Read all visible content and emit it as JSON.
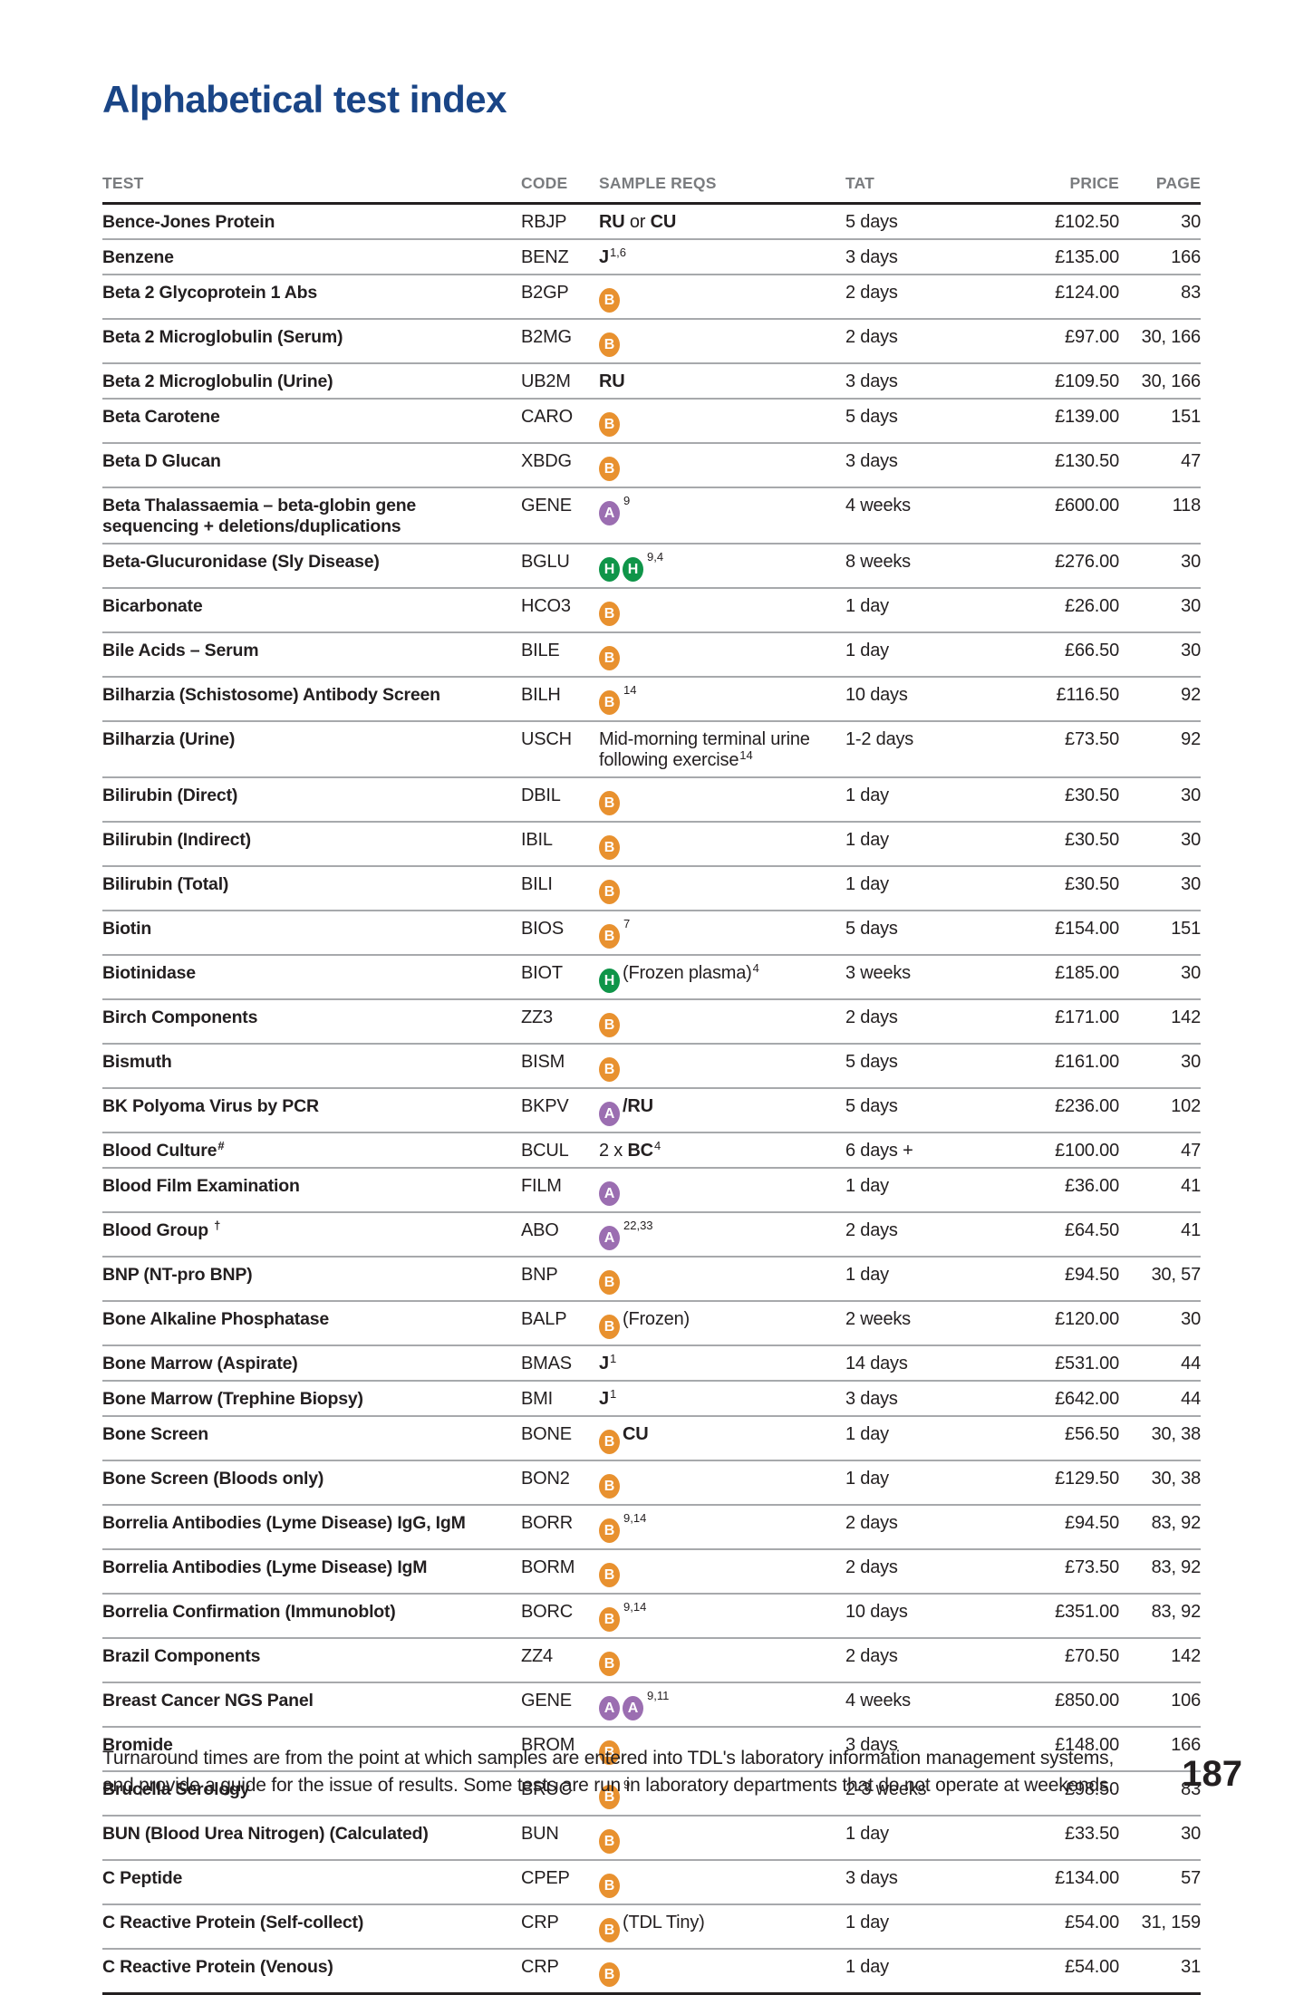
{
  "page": {
    "title": "Alphabetical test index",
    "page_number": "187",
    "footnote": [
      "Turnaround times are from the point at which samples are entered into TDL's laboratory information management systems,",
      "and provide a guide for the issue of results. Some tests are run in laboratory departments that do not operate at weekends."
    ]
  },
  "colors": {
    "title": "#1A4586",
    "badge_b": "#E8912F",
    "badge_a": "#9B6EB1",
    "badge_h": "#0F9549",
    "header_text": "#7A7C7F",
    "body_text": "#231F20",
    "row_line": "#A7A9AC"
  },
  "icons": {
    "badge_b": "blood-sample-icon",
    "badge_a": "edta-sample-icon",
    "badge_h": "heparin-sample-icon"
  },
  "table": {
    "headers": [
      "TEST",
      "CODE",
      "SAMPLE REQS",
      "TAT",
      "PRICE",
      "PAGE"
    ],
    "rows": [
      {
        "test": "Bence-Jones Protein",
        "code": "RBJP",
        "sample": [
          {
            "t": "b",
            "s": "RU"
          },
          {
            "t": "r",
            "s": " or "
          },
          {
            "t": "b",
            "s": "CU"
          }
        ],
        "tat": "5 days",
        "price": "£102.50",
        "pages": "30"
      },
      {
        "test": "Benzene",
        "code": "BENZ",
        "sample": [
          {
            "t": "b",
            "s": "J"
          },
          {
            "t": "sup",
            "s": "1,6"
          }
        ],
        "tat": "3 days",
        "price": "£135.00",
        "pages": "166"
      },
      {
        "test": "Beta 2 Glycoprotein 1 Abs",
        "code": "B2GP",
        "sample": [
          {
            "t": "badge",
            "s": "B"
          }
        ],
        "tat": "2 days",
        "price": "£124.00",
        "pages": "83"
      },
      {
        "test": "Beta 2 Microglobulin (Serum)",
        "code": "B2MG",
        "sample": [
          {
            "t": "badge",
            "s": "B"
          }
        ],
        "tat": "2 days",
        "price": "£97.00",
        "pages": "30, 166"
      },
      {
        "test": "Beta 2 Microglobulin (Urine)",
        "code": "UB2M",
        "sample": [
          {
            "t": "b",
            "s": "RU"
          }
        ],
        "tat": "3 days",
        "price": "£109.50",
        "pages": "30, 166"
      },
      {
        "test": "Beta Carotene",
        "code": "CARO",
        "sample": [
          {
            "t": "badge",
            "s": "B"
          }
        ],
        "tat": "5 days",
        "price": "£139.00",
        "pages": "151"
      },
      {
        "test": "Beta D Glucan",
        "code": "XBDG",
        "sample": [
          {
            "t": "badge",
            "s": "B"
          }
        ],
        "tat": "3 days",
        "price": "£130.50",
        "pages": "47"
      },
      {
        "test": "Beta Thalassaemia – beta-globin gene\nsequencing + deletions/duplications",
        "code": "GENE",
        "sample": [
          {
            "t": "badge",
            "s": "A"
          },
          {
            "t": "sup",
            "s": "9"
          }
        ],
        "tat": "4 weeks",
        "price": "£600.00",
        "pages": "118"
      },
      {
        "test": "Beta-Glucuronidase (Sly Disease)",
        "code": "BGLU",
        "sample": [
          {
            "t": "badge",
            "s": "H"
          },
          {
            "t": "badge",
            "s": "H"
          },
          {
            "t": "sup",
            "s": "9,4"
          }
        ],
        "tat": "8 weeks",
        "price": "£276.00",
        "pages": "30"
      },
      {
        "test": "Bicarbonate",
        "code": "HCO3",
        "sample": [
          {
            "t": "badge",
            "s": "B"
          }
        ],
        "tat": "1 day",
        "price": "£26.00",
        "pages": "30"
      },
      {
        "test": "Bile Acids – Serum",
        "code": "BILE",
        "sample": [
          {
            "t": "badge",
            "s": "B"
          }
        ],
        "tat": "1 day",
        "price": "£66.50",
        "pages": "30"
      },
      {
        "test": "Bilharzia (Schistosome) Antibody Screen",
        "code": "BILH",
        "sample": [
          {
            "t": "badge",
            "s": "B"
          },
          {
            "t": "sup",
            "s": "14"
          }
        ],
        "tat": "10 days",
        "price": "£116.50",
        "pages": "92"
      },
      {
        "test": "Bilharzia (Urine)",
        "code": "USCH",
        "sample": [
          {
            "t": "r",
            "s": "Mid-morning terminal urine\nfollowing exercise"
          },
          {
            "t": "sup",
            "s": "14"
          }
        ],
        "tat": "1-2 days",
        "price": "£73.50",
        "pages": "92"
      },
      {
        "test": "Bilirubin (Direct)",
        "code": "DBIL",
        "sample": [
          {
            "t": "badge",
            "s": "B"
          }
        ],
        "tat": "1 day",
        "price": "£30.50",
        "pages": "30"
      },
      {
        "test": "Bilirubin (Indirect)",
        "code": "IBIL",
        "sample": [
          {
            "t": "badge",
            "s": "B"
          }
        ],
        "tat": "1 day",
        "price": "£30.50",
        "pages": "30"
      },
      {
        "test": "Bilirubin (Total)",
        "code": "BILI",
        "sample": [
          {
            "t": "badge",
            "s": "B"
          }
        ],
        "tat": "1 day",
        "price": "£30.50",
        "pages": "30"
      },
      {
        "test": "Biotin",
        "code": "BIOS",
        "sample": [
          {
            "t": "badge",
            "s": "B"
          },
          {
            "t": "sup",
            "s": "7"
          }
        ],
        "tat": "5 days",
        "price": "£154.00",
        "pages": "151"
      },
      {
        "test": "Biotinidase",
        "code": "BIOT",
        "sample": [
          {
            "t": "badge",
            "s": "H"
          },
          {
            "t": "r",
            "s": "(Frozen plasma)"
          },
          {
            "t": "sup",
            "s": "4"
          }
        ],
        "tat": "3 weeks",
        "price": "£185.00",
        "pages": "30"
      },
      {
        "test": "Birch Components",
        "code": "ZZ3",
        "sample": [
          {
            "t": "badge",
            "s": "B"
          }
        ],
        "tat": "2 days",
        "price": "£171.00",
        "pages": "142"
      },
      {
        "test": "Bismuth",
        "code": "BISM",
        "sample": [
          {
            "t": "badge",
            "s": "B"
          }
        ],
        "tat": "5 days",
        "price": "£161.00",
        "pages": "30"
      },
      {
        "test": "BK Polyoma Virus by PCR",
        "code": "BKPV",
        "sample": [
          {
            "t": "badge",
            "s": "A"
          },
          {
            "t": "b",
            "s": "/RU"
          }
        ],
        "tat": "5 days",
        "price": "£236.00",
        "pages": "102"
      },
      {
        "test": "Blood Culture",
        "test_sup": "#",
        "code": "BCUL",
        "sample": [
          {
            "t": "r",
            "s": "2 x "
          },
          {
            "t": "b",
            "s": "BC"
          },
          {
            "t": "sup",
            "s": "4"
          }
        ],
        "tat": "6 days +",
        "price": "£100.00",
        "pages": "47"
      },
      {
        "test": "Blood Film Examination",
        "code": "FILM",
        "sample": [
          {
            "t": "badge",
            "s": "A"
          }
        ],
        "tat": "1 day",
        "price": "£36.00",
        "pages": "41"
      },
      {
        "test": "Blood Group ",
        "test_sup": "†",
        "code": "ABO",
        "sample": [
          {
            "t": "badge",
            "s": "A"
          },
          {
            "t": "sup",
            "s": "22,33"
          }
        ],
        "tat": "2 days",
        "price": "£64.50",
        "pages": "41"
      },
      {
        "test": "BNP (NT-pro BNP)",
        "code": "BNP",
        "sample": [
          {
            "t": "badge",
            "s": "B"
          }
        ],
        "tat": "1 day",
        "price": "£94.50",
        "pages": "30, 57"
      },
      {
        "test": "Bone Alkaline Phosphatase",
        "code": "BALP",
        "sample": [
          {
            "t": "badge",
            "s": "B"
          },
          {
            "t": "r",
            "s": "(Frozen)"
          }
        ],
        "tat": "2 weeks",
        "price": "£120.00",
        "pages": "30"
      },
      {
        "test": "Bone Marrow (Aspirate)",
        "code": "BMAS",
        "sample": [
          {
            "t": "b",
            "s": "J"
          },
          {
            "t": "sup",
            "s": "1"
          }
        ],
        "tat": "14 days",
        "price": "£531.00",
        "pages": "44"
      },
      {
        "test": "Bone Marrow (Trephine Biopsy)",
        "code": "BMI",
        "sample": [
          {
            "t": "b",
            "s": "J"
          },
          {
            "t": "sup",
            "s": "1"
          }
        ],
        "tat": "3 days",
        "price": "£642.00",
        "pages": "44"
      },
      {
        "test": "Bone Screen",
        "code": "BONE",
        "sample": [
          {
            "t": "badge",
            "s": "B"
          },
          {
            "t": "b",
            "s": "CU"
          }
        ],
        "tat": "1 day",
        "price": "£56.50",
        "pages": "30, 38"
      },
      {
        "test": "Bone Screen (Bloods only)",
        "code": "BON2",
        "sample": [
          {
            "t": "badge",
            "s": "B"
          }
        ],
        "tat": "1 day",
        "price": "£129.50",
        "pages": "30, 38"
      },
      {
        "test": "Borrelia Antibodies (Lyme Disease) IgG, IgM",
        "code": "BORR",
        "sample": [
          {
            "t": "badge",
            "s": "B"
          },
          {
            "t": "sup",
            "s": "9,14"
          }
        ],
        "tat": "2 days",
        "price": "£94.50",
        "pages": "83, 92"
      },
      {
        "test": "Borrelia Antibodies (Lyme Disease) IgM",
        "code": "BORM",
        "sample": [
          {
            "t": "badge",
            "s": "B"
          }
        ],
        "tat": "2 days",
        "price": "£73.50",
        "pages": "83, 92"
      },
      {
        "test": "Borrelia Confirmation (Immunoblot)",
        "code": "BORC",
        "sample": [
          {
            "t": "badge",
            "s": "B"
          },
          {
            "t": "sup",
            "s": "9,14"
          }
        ],
        "tat": "10 days",
        "price": "£351.00",
        "pages": "83, 92"
      },
      {
        "test": "Brazil Components",
        "code": "ZZ4",
        "sample": [
          {
            "t": "badge",
            "s": "B"
          }
        ],
        "tat": "2 days",
        "price": "£70.50",
        "pages": "142"
      },
      {
        "test": "Breast Cancer NGS Panel",
        "code": "GENE",
        "sample": [
          {
            "t": "badge",
            "s": "A"
          },
          {
            "t": "badge",
            "s": "A"
          },
          {
            "t": "sup",
            "s": "9,11"
          }
        ],
        "tat": "4 weeks",
        "price": "£850.00",
        "pages": "106"
      },
      {
        "test": "Bromide",
        "code": "BROM",
        "sample": [
          {
            "t": "badge",
            "s": "B"
          }
        ],
        "tat": "3 days",
        "price": "£148.00",
        "pages": "166"
      },
      {
        "test": "Brucella Serology",
        "code": "BRUC",
        "sample": [
          {
            "t": "badge",
            "s": "B"
          },
          {
            "t": "sup",
            "s": "9"
          }
        ],
        "tat": "2-3 weeks",
        "price": "£98.50",
        "pages": "83"
      },
      {
        "test": "BUN (Blood Urea Nitrogen) (Calculated)",
        "code": "BUN",
        "sample": [
          {
            "t": "badge",
            "s": "B"
          }
        ],
        "tat": "1 day",
        "price": "£33.50",
        "pages": "30"
      },
      {
        "test": "C Peptide",
        "code": "CPEP",
        "sample": [
          {
            "t": "badge",
            "s": "B"
          }
        ],
        "tat": "3 days",
        "price": "£134.00",
        "pages": "57"
      },
      {
        "test": "C Reactive Protein (Self-collect)",
        "code": "CRP",
        "sample": [
          {
            "t": "badge",
            "s": "B"
          },
          {
            "t": "r",
            "s": "(TDL Tiny)"
          }
        ],
        "tat": "1 day",
        "price": "£54.00",
        "pages": "31, 159"
      },
      {
        "test": "C Reactive Protein (Venous)",
        "code": "CRP",
        "sample": [
          {
            "t": "badge",
            "s": "B"
          }
        ],
        "tat": "1 day",
        "price": "£54.00",
        "pages": "31"
      }
    ]
  }
}
